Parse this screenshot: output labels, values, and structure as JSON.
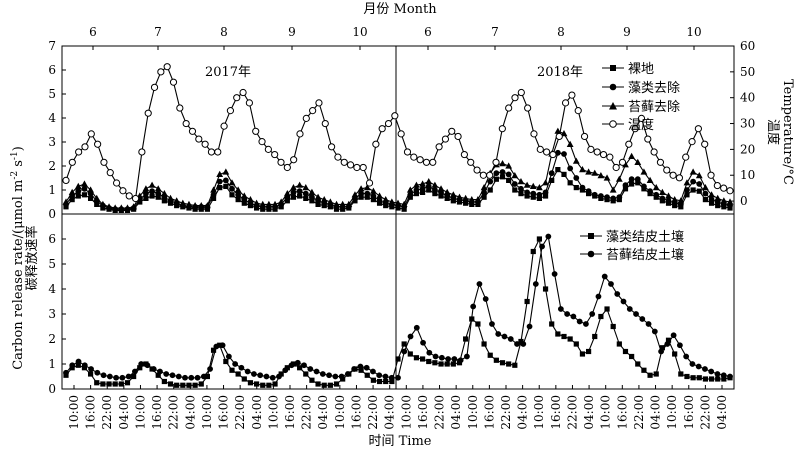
{
  "chart_data": [
    {
      "type": "line",
      "panel": "top",
      "top_axis_title": "月份 Month",
      "month_labels": [
        "6",
        "7",
        "8",
        "9",
        "10",
        "6",
        "7",
        "8",
        "9",
        "10"
      ],
      "year_labels": [
        "2017年",
        "2018年"
      ],
      "ylabel": "碳释放速率 Carbon release rate/(μmol m⁻² s⁻¹)",
      "ylabel_cn": "碳释放速率",
      "ylabel_en": "Carbon release rate/(μmol m",
      "y2label_cn": "温度",
      "y2label_en": "Temperature/°C",
      "ylim": [
        0,
        7
      ],
      "y2lim": [
        -5,
        60
      ],
      "yticks": [
        "0",
        "1",
        "2",
        "3",
        "4",
        "5",
        "6",
        "7"
      ],
      "y2ticks": [
        "0",
        "10",
        "20",
        "30",
        "40",
        "50",
        "60"
      ],
      "series": [
        {
          "name": "裸地",
          "marker": "square",
          "axis": "left",
          "values": [
            0.3,
            0.6,
            0.75,
            0.8,
            0.65,
            0.4,
            0.25,
            0.2,
            0.15,
            0.15,
            0.15,
            0.2,
            0.5,
            0.65,
            0.75,
            0.7,
            0.55,
            0.45,
            0.35,
            0.3,
            0.25,
            0.2,
            0.2,
            0.2,
            0.65,
            1.1,
            1.15,
            0.8,
            0.6,
            0.45,
            0.35,
            0.25,
            0.2,
            0.2,
            0.2,
            0.3,
            0.55,
            0.7,
            0.75,
            0.65,
            0.55,
            0.4,
            0.35,
            0.3,
            0.2,
            0.2,
            0.25,
            0.55,
            0.7,
            0.7,
            0.6,
            0.45,
            0.35,
            0.3,
            0.25,
            0.2,
            0.7,
            0.85,
            0.9,
            1.0,
            0.85,
            0.75,
            0.65,
            0.55,
            0.5,
            0.45,
            0.4,
            0.4,
            0.7,
            1.0,
            1.45,
            1.55,
            1.4,
            1.0,
            0.85,
            0.75,
            0.7,
            0.65,
            0.75,
            1.4,
            1.85,
            1.65,
            1.3,
            1.1,
            1.0,
            0.85,
            0.75,
            0.65,
            0.6,
            0.55,
            0.6,
            1.05,
            1.25,
            1.3,
            1.05,
            0.85,
            0.7,
            0.55,
            0.45,
            0.35,
            0.3,
            0.8,
            1.0,
            0.95,
            0.6,
            0.45,
            0.35,
            0.3,
            0.25
          ]
        },
        {
          "name": "藻类去除",
          "marker": "circle",
          "axis": "left",
          "values": [
            0.4,
            0.75,
            0.95,
            1.05,
            0.85,
            0.55,
            0.35,
            0.25,
            0.2,
            0.2,
            0.2,
            0.25,
            0.6,
            0.85,
            0.95,
            0.85,
            0.7,
            0.55,
            0.45,
            0.35,
            0.3,
            0.3,
            0.3,
            0.3,
            0.8,
            1.35,
            1.4,
            1.05,
            0.8,
            0.6,
            0.45,
            0.35,
            0.3,
            0.3,
            0.3,
            0.4,
            0.7,
            0.9,
            0.95,
            0.85,
            0.7,
            0.55,
            0.45,
            0.4,
            0.3,
            0.3,
            0.3,
            0.65,
            0.85,
            0.85,
            0.75,
            0.55,
            0.45,
            0.4,
            0.35,
            0.3,
            0.8,
            1.0,
            1.05,
            1.15,
            1.0,
            0.9,
            0.75,
            0.65,
            0.6,
            0.55,
            0.5,
            0.5,
            0.9,
            1.35,
            1.7,
            1.75,
            1.65,
            1.25,
            1.05,
            0.9,
            0.85,
            0.8,
            0.9,
            1.7,
            2.55,
            2.5,
            1.9,
            1.5,
            1.1,
            0.95,
            0.8,
            0.75,
            0.7,
            0.65,
            0.7,
            1.2,
            1.45,
            1.45,
            1.15,
            0.95,
            0.8,
            0.65,
            0.55,
            0.45,
            0.4,
            1.0,
            1.35,
            1.25,
            0.85,
            0.6,
            0.5,
            0.4,
            0.35
          ]
        },
        {
          "name": "苔藓去除",
          "marker": "triangle",
          "axis": "left",
          "values": [
            0.5,
            0.9,
            1.15,
            1.25,
            1.0,
            0.65,
            0.4,
            0.3,
            0.25,
            0.25,
            0.25,
            0.3,
            0.75,
            1.05,
            1.2,
            1.05,
            0.85,
            0.65,
            0.55,
            0.45,
            0.4,
            0.35,
            0.35,
            0.35,
            1.0,
            1.65,
            1.75,
            1.3,
            1.0,
            0.75,
            0.6,
            0.45,
            0.4,
            0.4,
            0.4,
            0.5,
            0.85,
            1.1,
            1.2,
            1.1,
            0.9,
            0.7,
            0.6,
            0.5,
            0.4,
            0.4,
            0.4,
            0.8,
            1.05,
            1.1,
            0.95,
            0.75,
            0.6,
            0.5,
            0.45,
            0.4,
            1.0,
            1.2,
            1.25,
            1.35,
            1.2,
            1.05,
            0.9,
            0.8,
            0.7,
            0.65,
            0.6,
            0.6,
            1.1,
            1.7,
            2.05,
            2.1,
            2.0,
            1.6,
            1.35,
            1.2,
            1.15,
            1.1,
            1.3,
            2.5,
            3.45,
            3.35,
            2.9,
            2.2,
            1.85,
            1.75,
            1.7,
            1.6,
            1.5,
            1.0,
            1.45,
            2.05,
            2.4,
            2.15,
            1.75,
            1.4,
            1.1,
            0.9,
            0.75,
            0.6,
            0.55,
            1.3,
            1.75,
            1.6,
            1.1,
            0.8,
            0.65,
            0.55,
            0.5
          ]
        },
        {
          "name": "温度",
          "marker": "open-circle",
          "axis": "right",
          "values": [
            8,
            15,
            19,
            21,
            26,
            22,
            15,
            11,
            7,
            4,
            2,
            1,
            19,
            34,
            44,
            50,
            52,
            46,
            36,
            30,
            27,
            24,
            22,
            19,
            19,
            29,
            35,
            40,
            42,
            38,
            27,
            23,
            20,
            18,
            15,
            13,
            16,
            26,
            32,
            35,
            38,
            30,
            21,
            17,
            15,
            14,
            13,
            13,
            7,
            22,
            28,
            30,
            33,
            26,
            19,
            17,
            16,
            15,
            15,
            21,
            24,
            27,
            25,
            18,
            15,
            12,
            10,
            10,
            15,
            28,
            36,
            40,
            42,
            36,
            26,
            20,
            19,
            18,
            25,
            38,
            41,
            35,
            25,
            20,
            19,
            18,
            17,
            13,
            15,
            22,
            28,
            32,
            24,
            19,
            15,
            12,
            10,
            9,
            17,
            23,
            28,
            22,
            10,
            6,
            5,
            4
          ]
        }
      ]
    },
    {
      "type": "line",
      "panel": "bottom",
      "xlabel": "时间 Time",
      "xticks": [
        "10:00",
        "16:00",
        "22:00",
        "04:00",
        "10:00",
        "16:00",
        "22:00",
        "04:00",
        "10:00",
        "16:00",
        "22:00",
        "04:00",
        "10:00",
        "16:00",
        "22:00",
        "04:00",
        "10:00",
        "16:00",
        "22:00",
        "04:00",
        "10:00",
        "16:00",
        "22:00",
        "04:00",
        "10:00",
        "16:00",
        "22:00",
        "04:00",
        "10:00",
        "16:00",
        "22:00",
        "04:00",
        "10:00",
        "16:00",
        "22:00",
        "04:00",
        "10:00",
        "16:00",
        "22:00",
        "04:00"
      ],
      "ylim": [
        0,
        7
      ],
      "yticks": [
        "0",
        "1",
        "2",
        "3",
        "4",
        "5",
        "6"
      ],
      "series": [
        {
          "name": "藻类结皮土壤",
          "marker": "square",
          "values": [
            0.55,
            0.85,
            0.95,
            0.85,
            0.6,
            0.25,
            0.2,
            0.2,
            0.2,
            0.2,
            0.25,
            0.5,
            0.85,
            1.0,
            0.8,
            0.55,
            0.3,
            0.2,
            0.15,
            0.15,
            0.15,
            0.15,
            0.2,
            0.5,
            1.55,
            1.75,
            1.1,
            0.75,
            0.6,
            0.4,
            0.25,
            0.2,
            0.15,
            0.15,
            0.2,
            0.6,
            0.85,
            1.0,
            0.85,
            0.6,
            0.35,
            0.2,
            0.15,
            0.15,
            0.2,
            0.4,
            0.6,
            0.8,
            0.75,
            0.55,
            0.35,
            0.3,
            0.3,
            0.3,
            1.2,
            1.8,
            1.4,
            1.25,
            1.2,
            1.1,
            1.05,
            1.0,
            1.0,
            1.0,
            1.05,
            2.0,
            2.8,
            2.6,
            1.8,
            1.35,
            1.15,
            1.05,
            1.0,
            0.95,
            1.9,
            3.5,
            5.5,
            6.0,
            4.0,
            2.6,
            2.2,
            2.1,
            2.0,
            1.8,
            1.4,
            1.5,
            2.1,
            2.9,
            3.2,
            2.5,
            1.8,
            1.5,
            1.3,
            1.0,
            0.75,
            0.55,
            0.6,
            1.65,
            1.95,
            1.4,
            0.6,
            0.5,
            0.45,
            0.45,
            0.4,
            0.4,
            0.4,
            0.4,
            0.45
          ]
        },
        {
          "name": "苔藓结皮土壤",
          "marker": "circle",
          "values": [
            0.65,
            0.95,
            1.1,
            0.95,
            0.8,
            0.65,
            0.55,
            0.5,
            0.45,
            0.45,
            0.5,
            0.7,
            1.0,
            0.95,
            0.8,
            0.7,
            0.6,
            0.55,
            0.5,
            0.45,
            0.45,
            0.45,
            0.5,
            0.8,
            1.7,
            1.75,
            1.3,
            1.0,
            0.85,
            0.7,
            0.6,
            0.55,
            0.5,
            0.45,
            0.5,
            0.75,
            0.95,
            1.05,
            0.95,
            0.8,
            0.7,
            0.6,
            0.55,
            0.5,
            0.5,
            0.6,
            0.8,
            0.9,
            0.85,
            0.7,
            0.55,
            0.5,
            0.45,
            0.45,
            1.5,
            2.1,
            2.45,
            1.85,
            1.45,
            1.3,
            1.25,
            1.2,
            1.2,
            1.15,
            1.3,
            3.3,
            4.2,
            3.6,
            2.6,
            2.2,
            2.1,
            2.0,
            1.8,
            1.8,
            2.5,
            4.2,
            5.7,
            6.1,
            4.6,
            3.2,
            3.0,
            2.9,
            2.7,
            2.6,
            3.0,
            3.7,
            4.5,
            4.2,
            3.8,
            3.5,
            3.2,
            3.0,
            2.8,
            2.6,
            2.3,
            1.5,
            1.8,
            2.15,
            1.75,
            1.3,
            1.0,
            0.9,
            0.8,
            0.7,
            0.6,
            0.55,
            0.5
          ]
        }
      ]
    }
  ]
}
